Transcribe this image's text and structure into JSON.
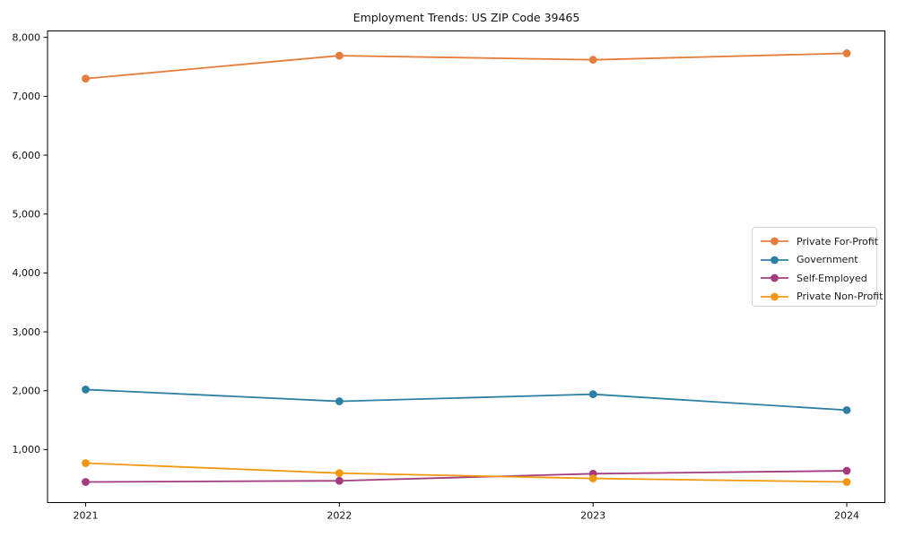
{
  "figure": {
    "title": "Employment Trends: US ZIP Code 39465"
  },
  "chart_data": {
    "type": "line",
    "title": "Employment Trends: US ZIP Code 39465",
    "xlabel": "",
    "ylabel": "",
    "categories": [
      "2021",
      "2022",
      "2023",
      "2024"
    ],
    "y_ticks": [
      1000,
      2000,
      3000,
      4000,
      5000,
      6000,
      7000,
      8000
    ],
    "y_tick_labels": [
      "1,000",
      "2,000",
      "3,000",
      "4,000",
      "5,000",
      "6,000",
      "7,000",
      "8,000"
    ],
    "ylim": [
      100,
      8110
    ],
    "grid": false,
    "legend_position": "center-right",
    "marker": "circle",
    "series": [
      {
        "name": "Private For-Profit",
        "color": "#e57d3c",
        "values": [
          7300,
          7690,
          7620,
          7730
        ]
      },
      {
        "name": "Government",
        "color": "#2d7fa3",
        "values": [
          2020,
          1820,
          1940,
          1670
        ]
      },
      {
        "name": "Self-Employed",
        "color": "#a33c7f",
        "values": [
          450,
          470,
          590,
          640
        ]
      },
      {
        "name": "Private Non-Profit",
        "color": "#f0990f",
        "values": [
          770,
          600,
          510,
          450
        ]
      }
    ],
    "axis_color": "#000000",
    "tick_label_color": "#111111",
    "background": "#ffffff"
  }
}
